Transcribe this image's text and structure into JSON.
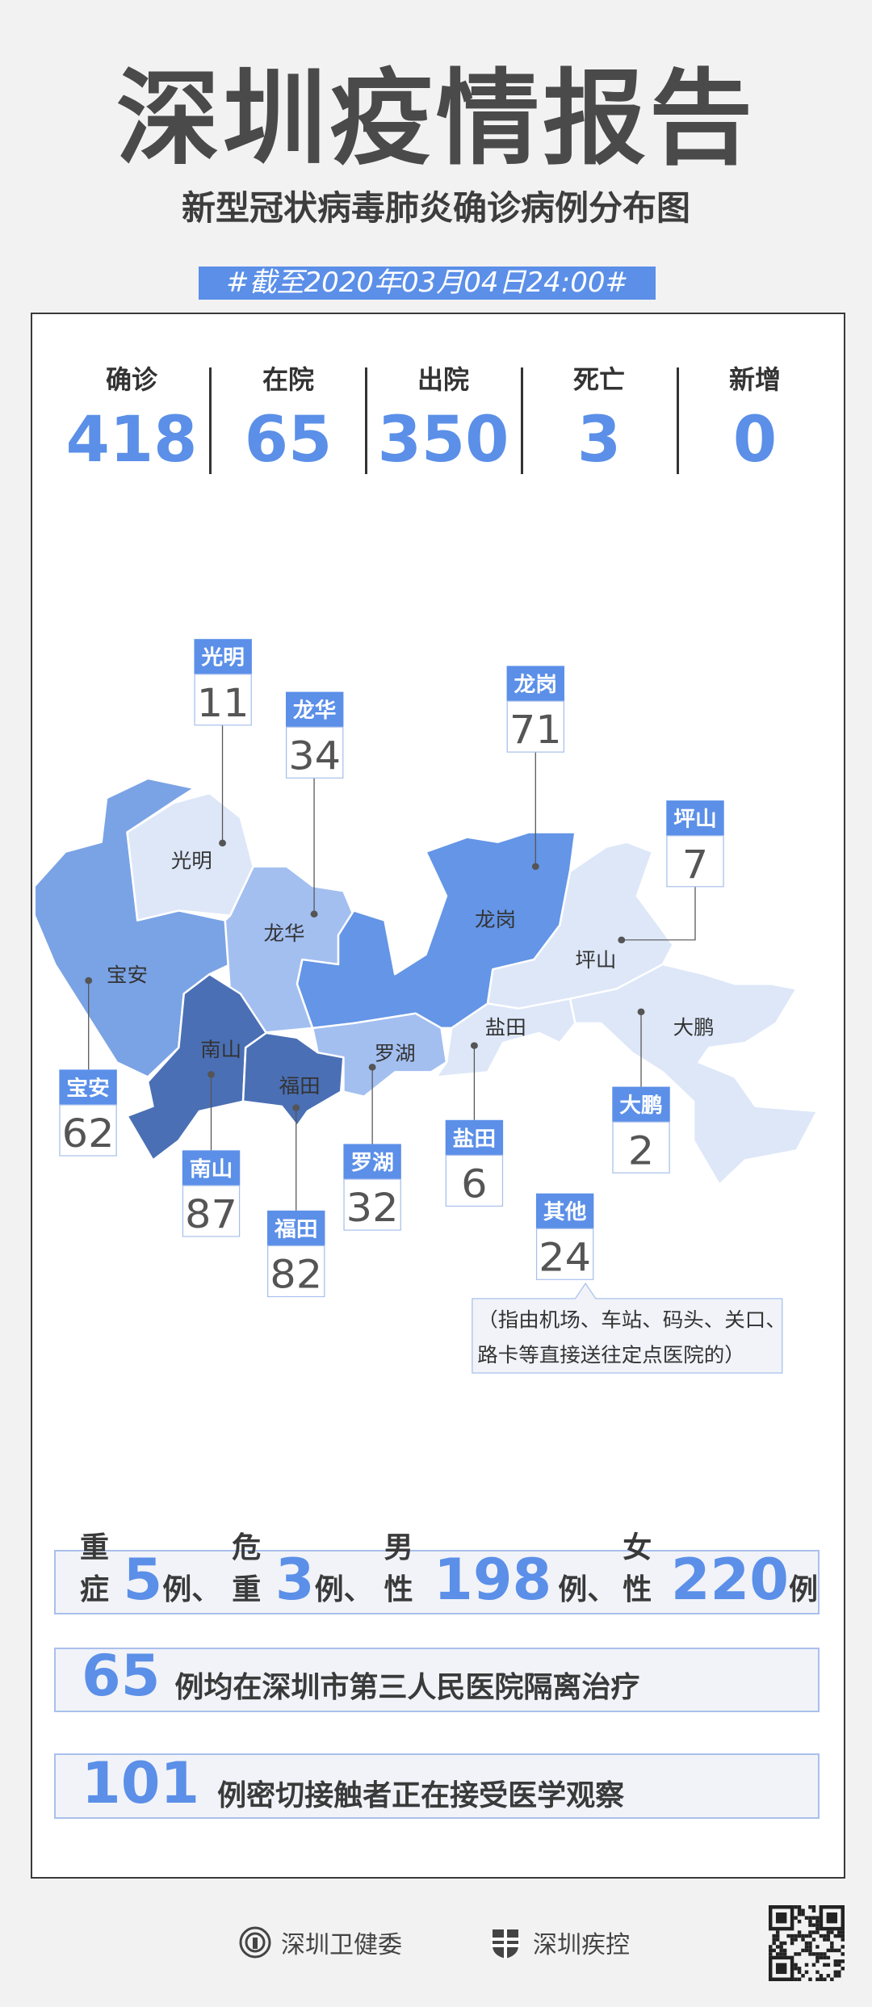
{
  "header": {
    "title": "深圳疫情报告",
    "subtitle": "新型冠状病毒肺炎确诊病例分布图",
    "date_banner": "#截至2020年03月04日24:00#"
  },
  "stats": [
    {
      "label": "确诊",
      "value": "418"
    },
    {
      "label": "在院",
      "value": "65"
    },
    {
      "label": "出院",
      "value": "350"
    },
    {
      "label": "死亡",
      "value": "3"
    },
    {
      "label": "新增",
      "value": "0"
    }
  ],
  "colors": {
    "accent": "#5b8fe8",
    "darkest": "#4a6fb5",
    "dark": "#6495e6",
    "mid": "#7aa3e5",
    "light": "#a3bff0",
    "lightest": "#dde7f8"
  },
  "map": {
    "districts": [
      {
        "name": "宝安",
        "cases": "62",
        "shade": "mid"
      },
      {
        "name": "光明",
        "cases": "11",
        "shade": "lightest"
      },
      {
        "name": "龙华",
        "cases": "34",
        "shade": "light"
      },
      {
        "name": "南山",
        "cases": "87",
        "shade": "darkest"
      },
      {
        "name": "福田",
        "cases": "82",
        "shade": "darkest"
      },
      {
        "name": "罗湖",
        "cases": "32",
        "shade": "light"
      },
      {
        "name": "龙岗",
        "cases": "71",
        "shade": "dark"
      },
      {
        "name": "坪山",
        "cases": "7",
        "shade": "lightest"
      },
      {
        "name": "盐田",
        "cases": "6",
        "shade": "lightest"
      },
      {
        "name": "大鹏",
        "cases": "2",
        "shade": "lightest"
      }
    ],
    "other": {
      "name": "其他",
      "cases": "24",
      "note_line1": "（指由机场、车站、码头、关口、",
      "note_line2": "路卡等直接送往定点医院的）"
    }
  },
  "summary": {
    "severe_label": "重症",
    "severe": "5",
    "critical_label": "危重",
    "critical": "3",
    "male_label": "男性",
    "male": "198",
    "female_label": "女性",
    "female": "220",
    "unit": "例",
    "sep": "、",
    "hospital_count": "65",
    "hospital_text": "例均在深圳市第三人民医院隔离治疗",
    "contacts_count": "101",
    "contacts_text": "例密切接触者正在接受医学观察"
  },
  "footer": {
    "org1": "深圳卫健委",
    "org2": "深圳疾控"
  }
}
